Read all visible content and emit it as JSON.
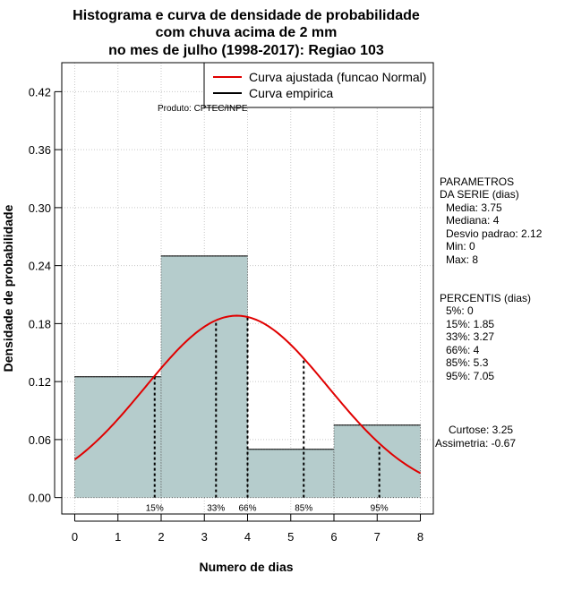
{
  "chart_data": {
    "type": "bar",
    "title_lines": [
      "Histograma e curva de densidade de probabilidade",
      "com chuva acima de 2 mm",
      "no mes de julho (1998-2017): Regiao 103"
    ],
    "xlabel": "Numero de dias",
    "ylabel": "Densidade de probabilidade",
    "xlim": [
      -0.3,
      8.3
    ],
    "ylim": [
      -0.017,
      0.45
    ],
    "x_ticks": [
      "0",
      "1",
      "2",
      "3",
      "4",
      "5",
      "6",
      "7",
      "8"
    ],
    "y_ticks": [
      "0.00",
      "0.06",
      "0.12",
      "0.18",
      "0.24",
      "0.30",
      "0.36",
      "0.42"
    ],
    "bins": [
      {
        "from": 0,
        "to": 2,
        "density": 0.125
      },
      {
        "from": 2,
        "to": 4,
        "density": 0.25
      },
      {
        "from": 4,
        "to": 6,
        "density": 0.05
      },
      {
        "from": 6,
        "to": 8,
        "density": 0.075
      }
    ],
    "bar_color": "#b5cccc",
    "curve_color": "#e00000",
    "normal_fit": {
      "mean": 3.75,
      "sd": 2.12,
      "x_from": 0,
      "x_to": 8
    },
    "percentile_markers": [
      {
        "label": "15%",
        "x": 1.85
      },
      {
        "label": "33%",
        "x": 3.27
      },
      {
        "label": "66%",
        "x": 4
      },
      {
        "label": "85%",
        "x": 5.3
      },
      {
        "label": "95%",
        "x": 7.05
      }
    ],
    "legend": [
      {
        "label": "Curva ajustada (funcao Normal)",
        "color": "#e00000"
      },
      {
        "label": "Curva empirica",
        "color": "#000000"
      }
    ],
    "product_note": "Produto: CPTEC/INPE"
  },
  "side_panel": {
    "params_title": [
      "PARAMETROS",
      "DA SERIE (dias)"
    ],
    "params": [
      "Media: 3.75",
      "Mediana: 4",
      "Desvio padrao: 2.12",
      "Min: 0",
      "Max: 8"
    ],
    "percentis_title": "PERCENTIS (dias)",
    "percentis": [
      "5%: 0",
      "15%: 1.85",
      "33%: 3.27",
      "66%: 4",
      "85%: 5.3",
      "95%: 7.05"
    ],
    "shape": [
      "Curtose: 3.25",
      "Assimetria: -0.67"
    ]
  }
}
